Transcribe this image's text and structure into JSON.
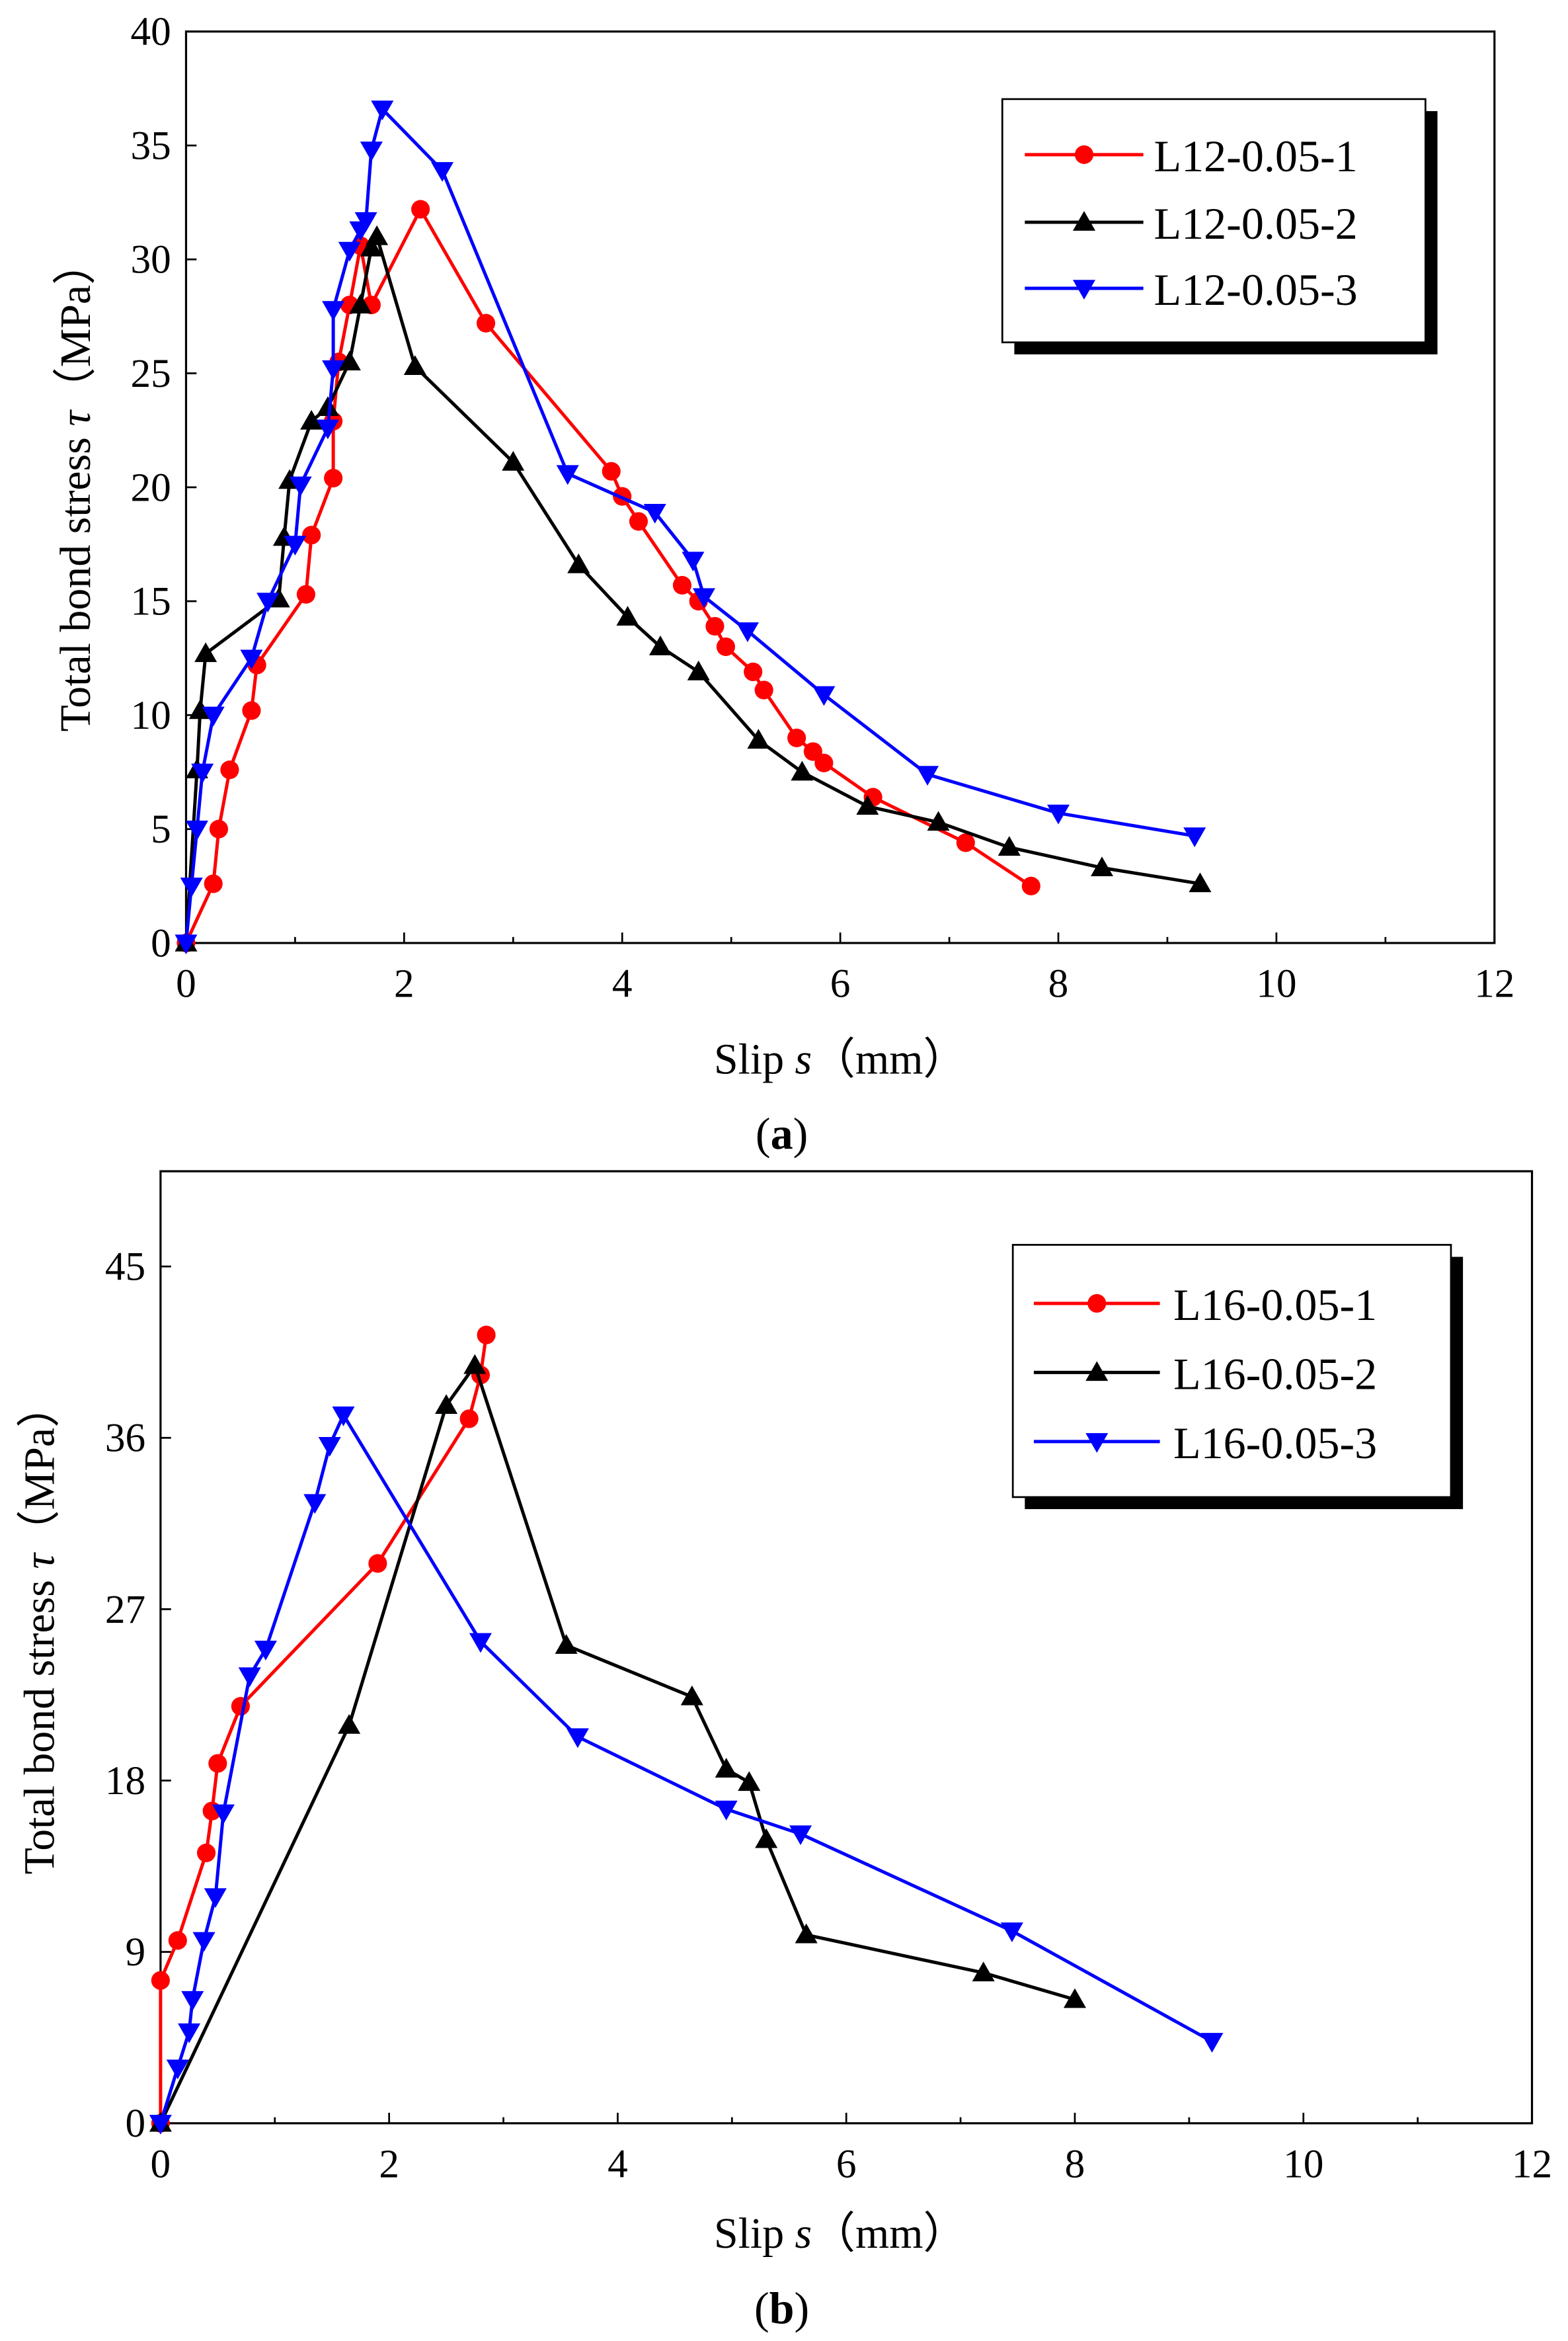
{
  "figure": {
    "panels": [
      {
        "label": "a",
        "xlabel_main": "Slip ",
        "xlabel_var": "s",
        "xlabel_unit": "（mm）",
        "ylabel_main": "Total bond stress ",
        "ylabel_var": "τ",
        "ylabel_unit": "（MPa）"
      },
      {
        "label": "b",
        "xlabel_main": "Slip ",
        "xlabel_var": "s",
        "xlabel_unit": "（mm）",
        "ylabel_main": "Total bond stress ",
        "ylabel_var": "τ",
        "ylabel_unit": "（MPa）"
      }
    ]
  },
  "chart_data": [
    {
      "type": "line",
      "title": "",
      "xlabel": "Slip s（mm）",
      "ylabel": "Total bond stress τ（MPa）",
      "xlim": [
        0,
        12
      ],
      "ylim": [
        0,
        40
      ],
      "xticks": [
        0,
        2,
        4,
        6,
        8,
        10,
        12
      ],
      "yticks": [
        0,
        5,
        10,
        15,
        20,
        25,
        30,
        35,
        40
      ],
      "grid": false,
      "legend_position": "top-right",
      "series": [
        {
          "name": "L12-0.05-1",
          "color": "#ff0000",
          "marker": "circle",
          "x": [
            0.0,
            0.25,
            0.3,
            0.4,
            0.6,
            0.65,
            1.1,
            1.15,
            1.35,
            1.35,
            1.4,
            1.5,
            1.6,
            1.7,
            2.15,
            2.75,
            3.9,
            4.0,
            4.15,
            4.55,
            4.7,
            4.85,
            4.95,
            5.2,
            5.3,
            5.6,
            5.75,
            5.85,
            6.3,
            7.15,
            7.75
          ],
          "y": [
            0.0,
            2.6,
            5.0,
            7.6,
            10.2,
            12.2,
            15.3,
            17.9,
            20.4,
            22.9,
            25.5,
            28.0,
            30.6,
            28.0,
            32.2,
            27.2,
            20.7,
            19.6,
            18.5,
            15.7,
            15.0,
            13.9,
            13.0,
            11.9,
            11.1,
            9.0,
            8.4,
            7.9,
            6.4,
            4.4,
            2.5
          ]
        },
        {
          "name": "L12-0.05-2",
          "color": "#000000",
          "marker": "triangle-up",
          "x": [
            0.0,
            0.1,
            0.13,
            0.18,
            0.85,
            0.9,
            0.95,
            1.15,
            1.3,
            1.5,
            1.6,
            1.7,
            1.75,
            2.1,
            3.0,
            3.6,
            4.05,
            4.35,
            4.7,
            5.25,
            5.65,
            6.25,
            6.9,
            7.55,
            8.4,
            9.3
          ],
          "y": [
            0.0,
            7.6,
            10.2,
            12.7,
            15.1,
            17.8,
            20.3,
            22.9,
            23.5,
            25.5,
            28.0,
            30.5,
            31.0,
            25.3,
            21.1,
            16.6,
            14.3,
            13.0,
            11.9,
            8.9,
            7.5,
            6.0,
            5.3,
            4.2,
            3.3,
            2.6
          ]
        },
        {
          "name": "L12-0.05-3",
          "color": "#0000ff",
          "marker": "triangle-down",
          "x": [
            0.0,
            0.05,
            0.1,
            0.15,
            0.25,
            0.6,
            0.75,
            1.0,
            1.05,
            1.3,
            1.35,
            1.35,
            1.5,
            1.6,
            1.65,
            1.7,
            1.8,
            2.35,
            3.5,
            4.3,
            4.65,
            4.75,
            5.15,
            5.85,
            6.8,
            8.0,
            9.25
          ],
          "y": [
            0.0,
            2.5,
            5.0,
            7.5,
            10.0,
            12.5,
            15.0,
            17.5,
            20.1,
            22.6,
            25.2,
            27.8,
            30.4,
            31.3,
            31.7,
            34.8,
            36.6,
            33.9,
            20.6,
            18.9,
            16.8,
            15.2,
            13.7,
            10.9,
            7.4,
            5.7,
            4.7
          ]
        }
      ]
    },
    {
      "type": "line",
      "title": "",
      "xlabel": "Slip s（mm）",
      "ylabel": "Total bond stress τ（MPa）",
      "xlim": [
        0,
        12
      ],
      "ylim": [
        0,
        50
      ],
      "xticks": [
        0,
        2,
        4,
        6,
        8,
        10,
        12
      ],
      "yticks": [
        0,
        9,
        18,
        27,
        36,
        45
      ],
      "grid": false,
      "legend_position": "top-right",
      "series": [
        {
          "name": "L16-0.05-1",
          "color": "#ff0000",
          "marker": "circle",
          "x": [
            0.0,
            0.0,
            0.15,
            0.4,
            0.45,
            0.5,
            0.7,
            1.9,
            2.7,
            2.8,
            2.85
          ],
          "y": [
            0.0,
            7.5,
            9.6,
            14.2,
            16.4,
            18.9,
            21.9,
            29.4,
            37.0,
            39.3,
            41.4
          ],
          "note": "first point plotted at axis origin"
        },
        {
          "name": "L16-0.05-2",
          "color": "#000000",
          "marker": "triangle-up",
          "x": [
            0.0,
            1.65,
            2.5,
            2.75,
            3.55,
            4.65,
            4.95,
            5.15,
            5.3,
            5.65,
            7.2,
            8.0
          ],
          "y": [
            0.0,
            20.9,
            37.7,
            39.8,
            25.1,
            22.4,
            18.6,
            17.9,
            14.9,
            9.9,
            7.9,
            6.5
          ]
        },
        {
          "name": "L16-0.05-3",
          "color": "#0000ff",
          "marker": "triangle-down",
          "x": [
            0.0,
            0.15,
            0.25,
            0.28,
            0.38,
            0.48,
            0.55,
            0.78,
            0.92,
            1.35,
            1.48,
            1.6,
            2.8,
            3.65,
            4.95,
            5.6,
            7.45,
            9.2
          ],
          "y": [
            0.0,
            2.9,
            4.8,
            6.5,
            9.6,
            11.9,
            16.3,
            23.5,
            24.9,
            32.6,
            35.6,
            37.2,
            25.3,
            20.3,
            16.5,
            15.2,
            10.1,
            4.3
          ]
        }
      ]
    }
  ]
}
